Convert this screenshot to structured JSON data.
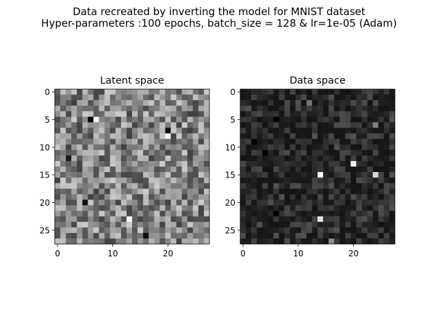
{
  "figure": {
    "suptitle_line1": "Data recreated by inverting the model for MNIST dataset",
    "suptitle_line2": "Hyper-parameters :100 epochs, batch_size = 128 & lr=1e-05 (Adam)"
  },
  "chart_data": [
    {
      "type": "heatmap",
      "title": "Latent space",
      "xlabel": "",
      "ylabel": "",
      "grid_size": [
        28,
        28
      ],
      "xlim": [
        -0.5,
        27.5
      ],
      "ylim": [
        27.5,
        -0.5
      ],
      "xticks": [
        0,
        10,
        20
      ],
      "yticks": [
        0,
        5,
        10,
        15,
        20,
        25
      ],
      "colormap": "gray",
      "value_range": [
        0,
        1
      ],
      "distribution": "mid-gray noise (approx. uniform 0.25–0.8, mean ≈0.5), individual cells not legible",
      "notable_cells": [
        {
          "row": 5,
          "col": 6,
          "value": 0.0
        },
        {
          "row": 5,
          "col": 7,
          "value": 0.95
        },
        {
          "row": 8,
          "col": 20,
          "value": 0.98
        },
        {
          "row": 7,
          "col": 20,
          "value": 0.05
        },
        {
          "row": 23,
          "col": 13,
          "value": 0.97
        },
        {
          "row": 20,
          "col": 5,
          "value": 0.05
        },
        {
          "row": 26,
          "col": 16,
          "value": 0.05
        },
        {
          "row": 12,
          "col": 2,
          "value": 0.1
        }
      ]
    },
    {
      "type": "heatmap",
      "title": "Data space",
      "xlabel": "",
      "ylabel": "",
      "grid_size": [
        28,
        28
      ],
      "xlim": [
        -0.5,
        27.5
      ],
      "ylim": [
        27.5,
        -0.5
      ],
      "xticks": [
        0,
        10,
        20
      ],
      "yticks": [
        0,
        5,
        10,
        15,
        20,
        25
      ],
      "colormap": "gray",
      "value_range": [
        0,
        1
      ],
      "distribution": "dark background (approx. 0.08–0.3), individual cells not legible",
      "notable_cells": [
        {
          "row": 15,
          "col": 14,
          "value": 1.0
        },
        {
          "row": 13,
          "col": 20,
          "value": 0.95
        },
        {
          "row": 15,
          "col": 24,
          "value": 0.85
        },
        {
          "row": 23,
          "col": 14,
          "value": 0.9
        },
        {
          "row": 5,
          "col": 6,
          "value": 0.0
        },
        {
          "row": 9,
          "col": 2,
          "value": 0.0
        },
        {
          "row": 11,
          "col": 4,
          "value": 0.0
        },
        {
          "row": 22,
          "col": 6,
          "value": 0.0
        },
        {
          "row": 2,
          "col": 12,
          "value": 0.45
        },
        {
          "row": 6,
          "col": 24,
          "value": 0.5
        },
        {
          "row": 27,
          "col": 16,
          "value": 0.55
        }
      ]
    }
  ]
}
